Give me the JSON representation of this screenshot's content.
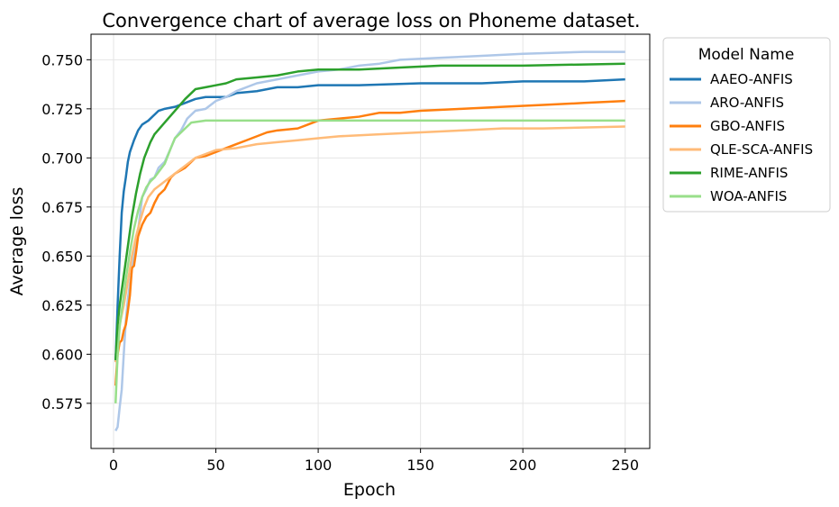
{
  "chart_data": {
    "type": "line",
    "title": "Convergence chart of average loss on Phoneme dataset.",
    "xlabel": "Epoch",
    "ylabel": "Average loss",
    "xlim": [
      -11,
      262
    ],
    "ylim": [
      0.552,
      0.763
    ],
    "xticks": [
      0,
      50,
      100,
      150,
      200,
      250
    ],
    "yticks": [
      0.575,
      0.6,
      0.625,
      0.65,
      0.675,
      0.7,
      0.725,
      0.75
    ],
    "ytick_labels": [
      "0.575",
      "0.600",
      "0.625",
      "0.650",
      "0.675",
      "0.700",
      "0.725",
      "0.750"
    ],
    "xtick_labels": [
      "0",
      "50",
      "100",
      "150",
      "200",
      "250"
    ],
    "grid": true,
    "legend": {
      "title": "Model Name",
      "placement": "outside-right-top"
    },
    "series": [
      {
        "name": "AAEO-ANFIS",
        "color": "#1f77b4",
        "points": [
          [
            1,
            0.596
          ],
          [
            2,
            0.625
          ],
          [
            3,
            0.65
          ],
          [
            4,
            0.672
          ],
          [
            5,
            0.683
          ],
          [
            6,
            0.69
          ],
          [
            7,
            0.698
          ],
          [
            8,
            0.703
          ],
          [
            10,
            0.709
          ],
          [
            12,
            0.714
          ],
          [
            14,
            0.717
          ],
          [
            17,
            0.719
          ],
          [
            20,
            0.722
          ],
          [
            22,
            0.724
          ],
          [
            25,
            0.725
          ],
          [
            30,
            0.726
          ],
          [
            35,
            0.728
          ],
          [
            40,
            0.73
          ],
          [
            45,
            0.731
          ],
          [
            55,
            0.731
          ],
          [
            60,
            0.733
          ],
          [
            70,
            0.734
          ],
          [
            80,
            0.736
          ],
          [
            90,
            0.736
          ],
          [
            100,
            0.737
          ],
          [
            120,
            0.737
          ],
          [
            150,
            0.738
          ],
          [
            180,
            0.738
          ],
          [
            200,
            0.739
          ],
          [
            230,
            0.739
          ],
          [
            250,
            0.74
          ]
        ]
      },
      {
        "name": "ARO-ANFIS",
        "color": "#aec7e8",
        "points": [
          [
            1,
            0.561
          ],
          [
            2,
            0.563
          ],
          [
            3,
            0.573
          ],
          [
            4,
            0.582
          ],
          [
            5,
            0.6
          ],
          [
            6,
            0.617
          ],
          [
            7,
            0.628
          ],
          [
            8,
            0.636
          ],
          [
            10,
            0.65
          ],
          [
            12,
            0.663
          ],
          [
            14,
            0.68
          ],
          [
            16,
            0.684
          ],
          [
            18,
            0.689
          ],
          [
            20,
            0.69
          ],
          [
            22,
            0.695
          ],
          [
            25,
            0.698
          ],
          [
            28,
            0.705
          ],
          [
            30,
            0.71
          ],
          [
            33,
            0.714
          ],
          [
            36,
            0.72
          ],
          [
            40,
            0.724
          ],
          [
            45,
            0.725
          ],
          [
            50,
            0.729
          ],
          [
            55,
            0.731
          ],
          [
            60,
            0.734
          ],
          [
            70,
            0.738
          ],
          [
            80,
            0.74
          ],
          [
            90,
            0.742
          ],
          [
            100,
            0.744
          ],
          [
            110,
            0.745
          ],
          [
            120,
            0.747
          ],
          [
            130,
            0.748
          ],
          [
            140,
            0.75
          ],
          [
            160,
            0.751
          ],
          [
            180,
            0.752
          ],
          [
            200,
            0.753
          ],
          [
            230,
            0.754
          ],
          [
            250,
            0.754
          ]
        ]
      },
      {
        "name": "GBO-ANFIS",
        "color": "#ff7f0e",
        "points": [
          [
            1,
            0.584
          ],
          [
            2,
            0.6
          ],
          [
            3,
            0.606
          ],
          [
            4,
            0.607
          ],
          [
            5,
            0.612
          ],
          [
            6,
            0.615
          ],
          [
            7,
            0.622
          ],
          [
            8,
            0.63
          ],
          [
            9,
            0.644
          ],
          [
            10,
            0.645
          ],
          [
            11,
            0.652
          ],
          [
            12,
            0.66
          ],
          [
            14,
            0.666
          ],
          [
            16,
            0.67
          ],
          [
            18,
            0.672
          ],
          [
            20,
            0.677
          ],
          [
            22,
            0.681
          ],
          [
            25,
            0.684
          ],
          [
            28,
            0.69
          ],
          [
            30,
            0.692
          ],
          [
            35,
            0.695
          ],
          [
            40,
            0.7
          ],
          [
            45,
            0.701
          ],
          [
            50,
            0.703
          ],
          [
            55,
            0.705
          ],
          [
            60,
            0.707
          ],
          [
            65,
            0.709
          ],
          [
            70,
            0.711
          ],
          [
            75,
            0.713
          ],
          [
            80,
            0.714
          ],
          [
            90,
            0.715
          ],
          [
            95,
            0.717
          ],
          [
            100,
            0.719
          ],
          [
            110,
            0.72
          ],
          [
            120,
            0.721
          ],
          [
            130,
            0.723
          ],
          [
            140,
            0.723
          ],
          [
            150,
            0.724
          ],
          [
            170,
            0.725
          ],
          [
            190,
            0.726
          ],
          [
            210,
            0.727
          ],
          [
            230,
            0.728
          ],
          [
            250,
            0.729
          ]
        ]
      },
      {
        "name": "QLE-SCA-ANFIS",
        "color": "#ffbb78",
        "points": [
          [
            1,
            0.596
          ],
          [
            3,
            0.615
          ],
          [
            5,
            0.625
          ],
          [
            7,
            0.637
          ],
          [
            9,
            0.65
          ],
          [
            11,
            0.66
          ],
          [
            13,
            0.668
          ],
          [
            15,
            0.675
          ],
          [
            17,
            0.68
          ],
          [
            20,
            0.684
          ],
          [
            25,
            0.688
          ],
          [
            30,
            0.692
          ],
          [
            35,
            0.696
          ],
          [
            40,
            0.7
          ],
          [
            45,
            0.702
          ],
          [
            50,
            0.704
          ],
          [
            60,
            0.705
          ],
          [
            70,
            0.707
          ],
          [
            80,
            0.708
          ],
          [
            90,
            0.709
          ],
          [
            100,
            0.71
          ],
          [
            110,
            0.711
          ],
          [
            130,
            0.712
          ],
          [
            150,
            0.713
          ],
          [
            170,
            0.714
          ],
          [
            190,
            0.715
          ],
          [
            210,
            0.715
          ],
          [
            250,
            0.716
          ]
        ]
      },
      {
        "name": "RIME-ANFIS",
        "color": "#2ca02c",
        "points": [
          [
            1,
            0.597
          ],
          [
            2,
            0.615
          ],
          [
            3,
            0.625
          ],
          [
            5,
            0.64
          ],
          [
            7,
            0.655
          ],
          [
            9,
            0.67
          ],
          [
            11,
            0.682
          ],
          [
            13,
            0.692
          ],
          [
            15,
            0.7
          ],
          [
            18,
            0.708
          ],
          [
            20,
            0.712
          ],
          [
            25,
            0.718
          ],
          [
            30,
            0.724
          ],
          [
            35,
            0.73
          ],
          [
            40,
            0.735
          ],
          [
            45,
            0.736
          ],
          [
            50,
            0.737
          ],
          [
            55,
            0.738
          ],
          [
            60,
            0.74
          ],
          [
            70,
            0.741
          ],
          [
            80,
            0.742
          ],
          [
            90,
            0.744
          ],
          [
            100,
            0.745
          ],
          [
            120,
            0.745
          ],
          [
            140,
            0.746
          ],
          [
            160,
            0.747
          ],
          [
            200,
            0.747
          ],
          [
            250,
            0.748
          ]
        ]
      },
      {
        "name": "WOA-ANFIS",
        "color": "#98df8a",
        "points": [
          [
            1,
            0.575
          ],
          [
            2,
            0.6
          ],
          [
            3,
            0.614
          ],
          [
            4,
            0.622
          ],
          [
            5,
            0.63
          ],
          [
            6,
            0.638
          ],
          [
            7,
            0.645
          ],
          [
            8,
            0.652
          ],
          [
            10,
            0.664
          ],
          [
            12,
            0.673
          ],
          [
            14,
            0.68
          ],
          [
            16,
            0.685
          ],
          [
            18,
            0.688
          ],
          [
            20,
            0.69
          ],
          [
            25,
            0.697
          ],
          [
            28,
            0.705
          ],
          [
            30,
            0.71
          ],
          [
            35,
            0.715
          ],
          [
            38,
            0.718
          ],
          [
            45,
            0.719
          ],
          [
            60,
            0.719
          ],
          [
            100,
            0.719
          ],
          [
            150,
            0.719
          ],
          [
            200,
            0.719
          ],
          [
            250,
            0.719
          ]
        ]
      }
    ]
  }
}
